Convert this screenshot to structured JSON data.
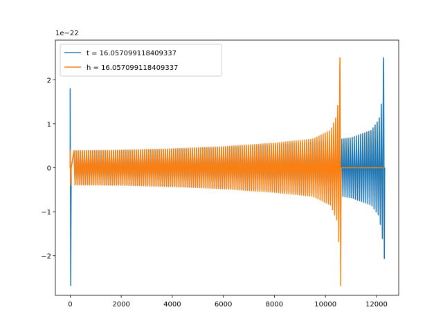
{
  "chart_data": {
    "type": "line",
    "title": "",
    "xlabel": "",
    "ylabel": "",
    "y_offset_label": "1e−22",
    "xlim": [
      -580,
      12870
    ],
    "ylim": [
      -2.9,
      2.9
    ],
    "x_ticks": [
      0,
      2000,
      4000,
      6000,
      8000,
      10000,
      12000
    ],
    "x_tick_labels": [
      "0",
      "2000",
      "4000",
      "6000",
      "8000",
      "10000",
      "12000"
    ],
    "y_ticks": [
      -2,
      -1,
      0,
      1,
      2
    ],
    "y_tick_labels": [
      "−2",
      "−1",
      "0",
      "1",
      "2"
    ],
    "grid": false,
    "legend_position": "top-left",
    "series": [
      {
        "name": "t = 16.057099118409337",
        "color": "#1f77b4",
        "start_x": 0,
        "chirp_end_x": 12280,
        "end_x": 12280,
        "initial_spike": {
          "x": 0,
          "max": 1.8,
          "min": -2.68
        },
        "envelope_x": [
          150,
          2000,
          4000,
          6000,
          8000,
          10000,
          11000,
          11800,
          12100,
          12230,
          12280
        ],
        "envelope_amplitude": [
          0.38,
          0.39,
          0.42,
          0.46,
          0.52,
          0.6,
          0.68,
          0.85,
          1.1,
          1.6,
          2.5
        ],
        "final_peak": {
          "max": 2.5,
          "min": -2.06
        }
      },
      {
        "name": "h = 16.057099118409337",
        "color": "#ff7f0e",
        "start_x": 0,
        "chirp_end_x": 10570,
        "end_x": 12280,
        "initial_spike": {
          "x": 0,
          "max": 0.4,
          "min": -0.4
        },
        "envelope_x": [
          150,
          2000,
          4000,
          6000,
          8000,
          9500,
          10200,
          10450,
          10540,
          10570
        ],
        "envelope_amplitude": [
          0.39,
          0.4,
          0.43,
          0.48,
          0.56,
          0.65,
          0.85,
          1.2,
          1.8,
          2.5
        ],
        "final_peak": {
          "max": 2.5,
          "min": -2.68
        }
      }
    ]
  }
}
